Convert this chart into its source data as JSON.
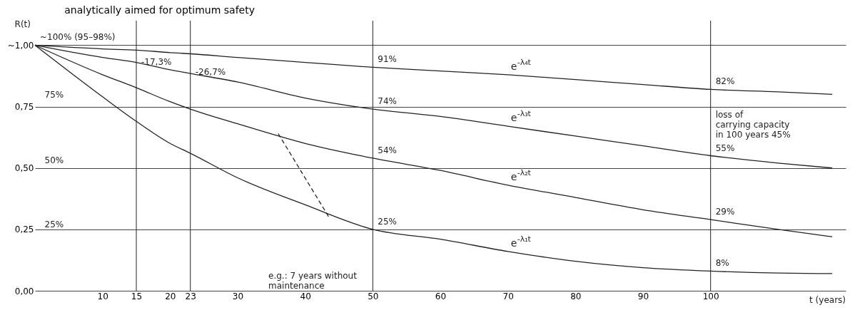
{
  "chart_data": {
    "type": "line",
    "title": "analytically aimed for optimum safety",
    "xlabel": "t (years)",
    "ylabel": "R(t)",
    "xlim": [
      0,
      120
    ],
    "ylim": [
      0,
      1.1
    ],
    "xticks": [
      10,
      15,
      20,
      23,
      30,
      40,
      50,
      60,
      70,
      80,
      90,
      100
    ],
    "yticks": [
      {
        "value": 0,
        "label": "0,00"
      },
      {
        "value": 0.25,
        "label": "0,25"
      },
      {
        "value": 0.5,
        "label": "0,50"
      },
      {
        "value": 0.75,
        "label": "0,75"
      },
      {
        "value": 1,
        "label": "~1,00"
      }
    ],
    "grid": "y",
    "line_style": "solid",
    "x": [
      0,
      10,
      15,
      20,
      23,
      30,
      40,
      50,
      60,
      70,
      80,
      90,
      100,
      110,
      118
    ],
    "series": [
      {
        "name": "e$^{-λ₄t}$",
        "color": "#222222",
        "values": [
          1,
          0.985,
          0.98,
          0.97,
          0.965,
          0.95,
          0.93,
          0.91,
          0.895,
          0.88,
          0.86,
          0.84,
          0.82,
          0.81,
          0.8
        ]
      },
      {
        "name": "e$^{-λ₃t}$",
        "color": "#222222",
        "values": [
          1,
          0.95,
          0.93,
          0.9,
          0.885,
          0.85,
          0.785,
          0.74,
          0.71,
          0.67,
          0.63,
          0.59,
          0.55,
          0.52,
          0.5
        ]
      },
      {
        "name": "e$^{-λ₂t}$",
        "color": "#222222",
        "values": [
          1,
          0.88,
          0.827,
          0.77,
          0.74,
          0.68,
          0.6,
          0.54,
          0.49,
          0.43,
          0.38,
          0.33,
          0.29,
          0.25,
          0.22
        ]
      },
      {
        "name": "e$^{-λ₁t}$",
        "color": "#222222",
        "values": [
          1,
          0.79,
          0.69,
          0.6,
          0.56,
          0.46,
          0.35,
          0.25,
          0.21,
          0.16,
          0.12,
          0.094,
          0.08,
          0.072,
          0.07
        ]
      },
      {
        "type": "line",
        "line_style": "dashed",
        "color": "#222222",
        "x": [
          36,
          43.5
        ],
        "values": [
          0.64,
          0.3
        ]
      }
    ],
    "ref_lines": [
      {
        "axis": "x",
        "value": 15
      },
      {
        "axis": "x",
        "value": 23
      },
      {
        "axis": "x",
        "value": 50
      },
      {
        "axis": "x",
        "value": 100
      }
    ],
    "annotations": [
      {
        "text": "~100% (95–98%)",
        "x": 0,
        "y": 1
      },
      {
        "text": "-17,3%",
        "x": 15,
        "y": 0.9
      },
      {
        "text": "-26,7%",
        "x": 23,
        "y": 0.86
      },
      "75%",
      "50%",
      "25%",
      {
        "text": "91%",
        "x": 50,
        "y": 0.91
      },
      {
        "text": "74%",
        "x": 50,
        "y": 0.74
      },
      {
        "text": "54%",
        "x": 50,
        "y": 0.54
      },
      {
        "text": "25%",
        "x": 50,
        "y": 0.25
      },
      {
        "text": "82%",
        "x": 100,
        "y": 0.82
      },
      {
        "text": "55%",
        "x": 100,
        "y": 0.55
      },
      {
        "text": "29%",
        "x": 100,
        "y": 0.29
      },
      {
        "text": "8%",
        "x": 100,
        "y": 0.08
      },
      {
        "text": "loss of\ncarrying capacity\nin 100 years   45%",
        "x": 100,
        "y": 0.685
      },
      "e.g.: 7 years without\nmaintenance"
    ]
  }
}
